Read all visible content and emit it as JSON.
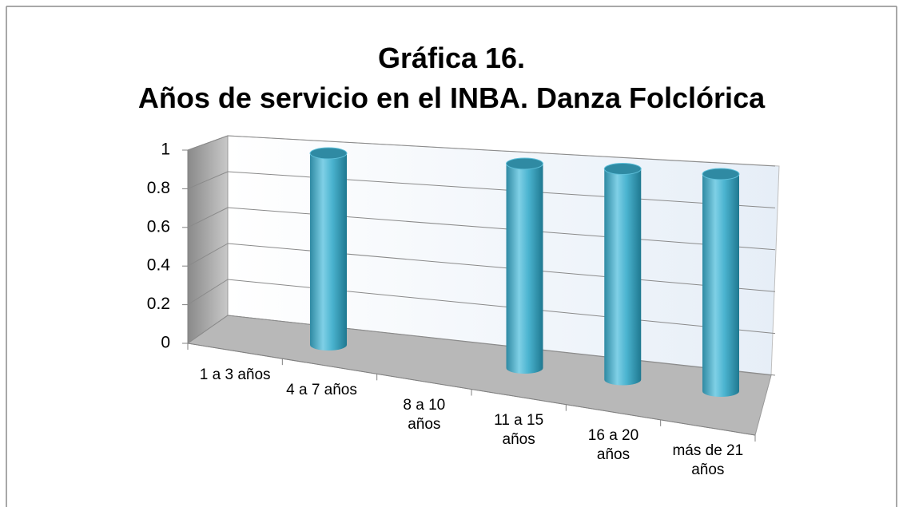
{
  "chart_data": {
    "type": "bar3d",
    "title": "Gráfica 16. Años de servicio en el INBA. Danza Folclórica",
    "categories": [
      "1 a 3 años",
      "4 a 7 años",
      "8 a 10 años",
      "11 a 15 años",
      "16 a 20 años",
      "más de 21 años"
    ],
    "values": [
      0,
      1,
      0,
      1,
      1,
      1
    ],
    "color": "#4bacc6",
    "ylim": [
      0,
      1
    ],
    "yticks": [
      0,
      0.2,
      0.4,
      0.6,
      0.8,
      1
    ],
    "grid": true
  }
}
